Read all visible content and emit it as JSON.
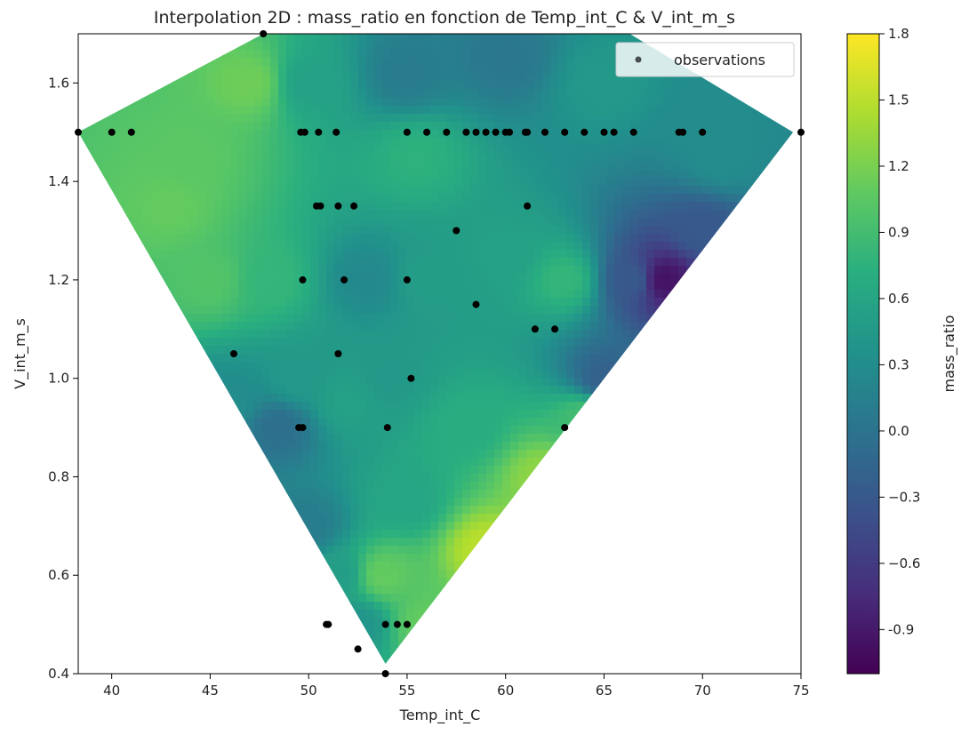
{
  "chart_data": {
    "type": "heatmap",
    "subtype": "interpolated-contour-with-scatter",
    "title": "Interpolation 2D : mass_ratio en fonction de Temp_int_C & V_int_m_s",
    "xlabel": "Temp_int_C",
    "ylabel": "V_int_m_s",
    "xlim": [
      38.3,
      75
    ],
    "ylim": [
      0.4,
      1.7
    ],
    "xticks": [
      "40",
      "45",
      "50",
      "55",
      "60",
      "65",
      "70",
      "75"
    ],
    "yticks": [
      "0.4",
      "0.6",
      "0.8",
      "1.0",
      "1.2",
      "1.4",
      "1.6"
    ],
    "colormap": "viridis",
    "colorbar": {
      "label": "mass_ratio",
      "range": [
        -1.1,
        1.8
      ],
      "ticks": [
        "-0.9",
        "−0.6",
        "−0.3",
        "0.0",
        "0.3",
        "0.6",
        "0.9",
        "1.2",
        "1.5",
        "1.8"
      ]
    },
    "legend": {
      "position": "top-right",
      "label": "observations"
    },
    "hull": [
      [
        38.3,
        1.5
      ],
      [
        47.7,
        1.7
      ],
      [
        66.3,
        1.7
      ],
      [
        74.6,
        1.5
      ],
      [
        53.9,
        0.42
      ]
    ],
    "surface_samples": [
      {
        "x": 44,
        "y": 1.45,
        "v": 1.05
      },
      {
        "x": 45,
        "y": 1.2,
        "v": 1.0
      },
      {
        "x": 43,
        "y": 1.35,
        "v": 1.1
      },
      {
        "x": 47,
        "y": 1.6,
        "v": 1.15
      },
      {
        "x": 50,
        "y": 1.6,
        "v": 0.55
      },
      {
        "x": 55,
        "y": 1.62,
        "v": 0.1
      },
      {
        "x": 60,
        "y": 1.65,
        "v": 0.05
      },
      {
        "x": 65,
        "y": 1.6,
        "v": 0.45
      },
      {
        "x": 70,
        "y": 1.52,
        "v": 0.3
      },
      {
        "x": 48,
        "y": 1.2,
        "v": 0.8
      },
      {
        "x": 53,
        "y": 1.2,
        "v": 0.25
      },
      {
        "x": 56,
        "y": 1.2,
        "v": 0.5
      },
      {
        "x": 60,
        "y": 1.25,
        "v": 0.55
      },
      {
        "x": 63,
        "y": 1.2,
        "v": 0.8
      },
      {
        "x": 66.5,
        "y": 1.2,
        "v": -0.3
      },
      {
        "x": 68,
        "y": 1.2,
        "v": -0.95
      },
      {
        "x": 70,
        "y": 1.3,
        "v": -0.3
      },
      {
        "x": 71,
        "y": 1.45,
        "v": 0.3
      },
      {
        "x": 65,
        "y": 1.0,
        "v": -0.2
      },
      {
        "x": 64,
        "y": 0.92,
        "v": 0.9
      },
      {
        "x": 62,
        "y": 0.8,
        "v": 1.3
      },
      {
        "x": 59,
        "y": 0.65,
        "v": 1.5
      },
      {
        "x": 56,
        "y": 0.5,
        "v": 1.1
      },
      {
        "x": 58,
        "y": 0.9,
        "v": 0.7
      },
      {
        "x": 52,
        "y": 0.95,
        "v": 0.55
      },
      {
        "x": 49.5,
        "y": 1.0,
        "v": 0.45
      },
      {
        "x": 48.5,
        "y": 0.9,
        "v": -0.05
      },
      {
        "x": 46,
        "y": 0.95,
        "v": 0.3
      },
      {
        "x": 50,
        "y": 0.7,
        "v": 0.1
      },
      {
        "x": 51.5,
        "y": 0.6,
        "v": 0.5
      },
      {
        "x": 53.8,
        "y": 0.6,
        "v": 1.1
      },
      {
        "x": 52.5,
        "y": 0.5,
        "v": 0.4
      },
      {
        "x": 55,
        "y": 0.75,
        "v": 0.6
      },
      {
        "x": 54,
        "y": 1.0,
        "v": 0.45
      },
      {
        "x": 55.5,
        "y": 1.45,
        "v": 0.75
      }
    ],
    "points": [
      {
        "x": 38.3,
        "y": 1.5
      },
      {
        "x": 40,
        "y": 1.5
      },
      {
        "x": 41,
        "y": 1.5
      },
      {
        "x": 49.6,
        "y": 1.5
      },
      {
        "x": 49.8,
        "y": 1.5
      },
      {
        "x": 50.5,
        "y": 1.5
      },
      {
        "x": 51.4,
        "y": 1.5
      },
      {
        "x": 55,
        "y": 1.5
      },
      {
        "x": 56,
        "y": 1.5
      },
      {
        "x": 57,
        "y": 1.5
      },
      {
        "x": 58,
        "y": 1.5
      },
      {
        "x": 58.5,
        "y": 1.5
      },
      {
        "x": 59,
        "y": 1.5
      },
      {
        "x": 59.5,
        "y": 1.5
      },
      {
        "x": 60,
        "y": 1.5
      },
      {
        "x": 60.2,
        "y": 1.5
      },
      {
        "x": 61,
        "y": 1.5
      },
      {
        "x": 61.1,
        "y": 1.5
      },
      {
        "x": 62,
        "y": 1.5
      },
      {
        "x": 63,
        "y": 1.5
      },
      {
        "x": 64,
        "y": 1.5
      },
      {
        "x": 65,
        "y": 1.5
      },
      {
        "x": 65.5,
        "y": 1.5
      },
      {
        "x": 66.5,
        "y": 1.5
      },
      {
        "x": 68.8,
        "y": 1.5
      },
      {
        "x": 69,
        "y": 1.5
      },
      {
        "x": 70,
        "y": 1.5
      },
      {
        "x": 75,
        "y": 1.5
      },
      {
        "x": 47.7,
        "y": 1.7
      },
      {
        "x": 50.4,
        "y": 1.35
      },
      {
        "x": 50.6,
        "y": 1.35
      },
      {
        "x": 51.5,
        "y": 1.35
      },
      {
        "x": 52.3,
        "y": 1.35
      },
      {
        "x": 61.1,
        "y": 1.35
      },
      {
        "x": 57.5,
        "y": 1.3
      },
      {
        "x": 49.7,
        "y": 1.2
      },
      {
        "x": 51.8,
        "y": 1.2
      },
      {
        "x": 55,
        "y": 1.2
      },
      {
        "x": 58.5,
        "y": 1.15
      },
      {
        "x": 61.5,
        "y": 1.1
      },
      {
        "x": 62.5,
        "y": 1.1
      },
      {
        "x": 46.2,
        "y": 1.05
      },
      {
        "x": 51.5,
        "y": 1.05
      },
      {
        "x": 55.2,
        "y": 1.0
      },
      {
        "x": 49.5,
        "y": 0.9
      },
      {
        "x": 49.7,
        "y": 0.9
      },
      {
        "x": 54,
        "y": 0.9
      },
      {
        "x": 63,
        "y": 0.9
      },
      {
        "x": 50.9,
        "y": 0.5
      },
      {
        "x": 51,
        "y": 0.5
      },
      {
        "x": 53.9,
        "y": 0.5
      },
      {
        "x": 54.5,
        "y": 0.5
      },
      {
        "x": 55,
        "y": 0.5
      },
      {
        "x": 52.5,
        "y": 0.45
      },
      {
        "x": 53.9,
        "y": 0.4
      }
    ]
  }
}
